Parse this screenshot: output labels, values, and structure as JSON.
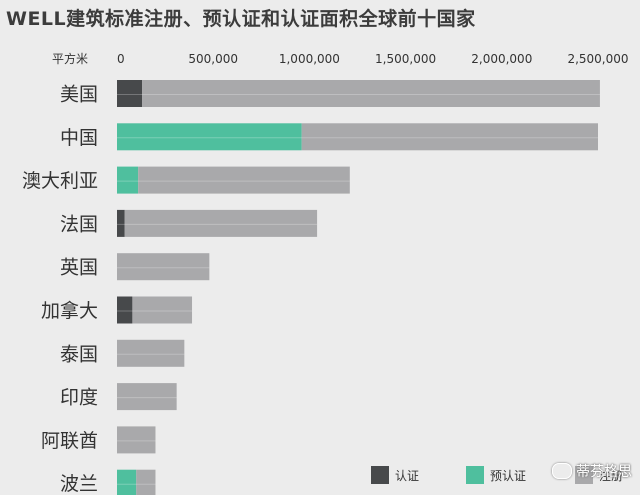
{
  "chart_data": {
    "type": "bar",
    "orientation": "horizontal",
    "stacked": true,
    "title": "WELL建筑标准注册、预认证和认证面积全球前十国家",
    "unit_label": "平方米",
    "x_ticks": [
      "0",
      "500,000",
      "1,000,000",
      "1,500,000",
      "2,000,000",
      "2,500,000"
    ],
    "tick_values": [
      0,
      500000,
      1000000,
      1500000,
      2000000,
      2500000
    ],
    "xlim": [
      0,
      2550000
    ],
    "categories": [
      "美国",
      "中国",
      "澳大利亚",
      "法国",
      "英国",
      "加拿大",
      "泰国",
      "印度",
      "阿联酋",
      "波兰"
    ],
    "series": [
      {
        "name": "认证",
        "color": "#47494b",
        "values": [
          130000,
          0,
          0,
          40000,
          0,
          80000,
          0,
          0,
          0,
          0
        ]
      },
      {
        "name": "预认证",
        "color": "#4fbf9e",
        "values": [
          0,
          960000,
          110000,
          0,
          0,
          0,
          0,
          0,
          0,
          100000
        ]
      },
      {
        "name": "注册",
        "color": "#a9a9ab",
        "values": [
          2380000,
          1540000,
          1100000,
          1000000,
          480000,
          310000,
          350000,
          310000,
          200000,
          100000
        ]
      }
    ],
    "legend_position": "bottom-right",
    "grid": false
  },
  "watermark": {
    "text": "蒂芬格思"
  }
}
